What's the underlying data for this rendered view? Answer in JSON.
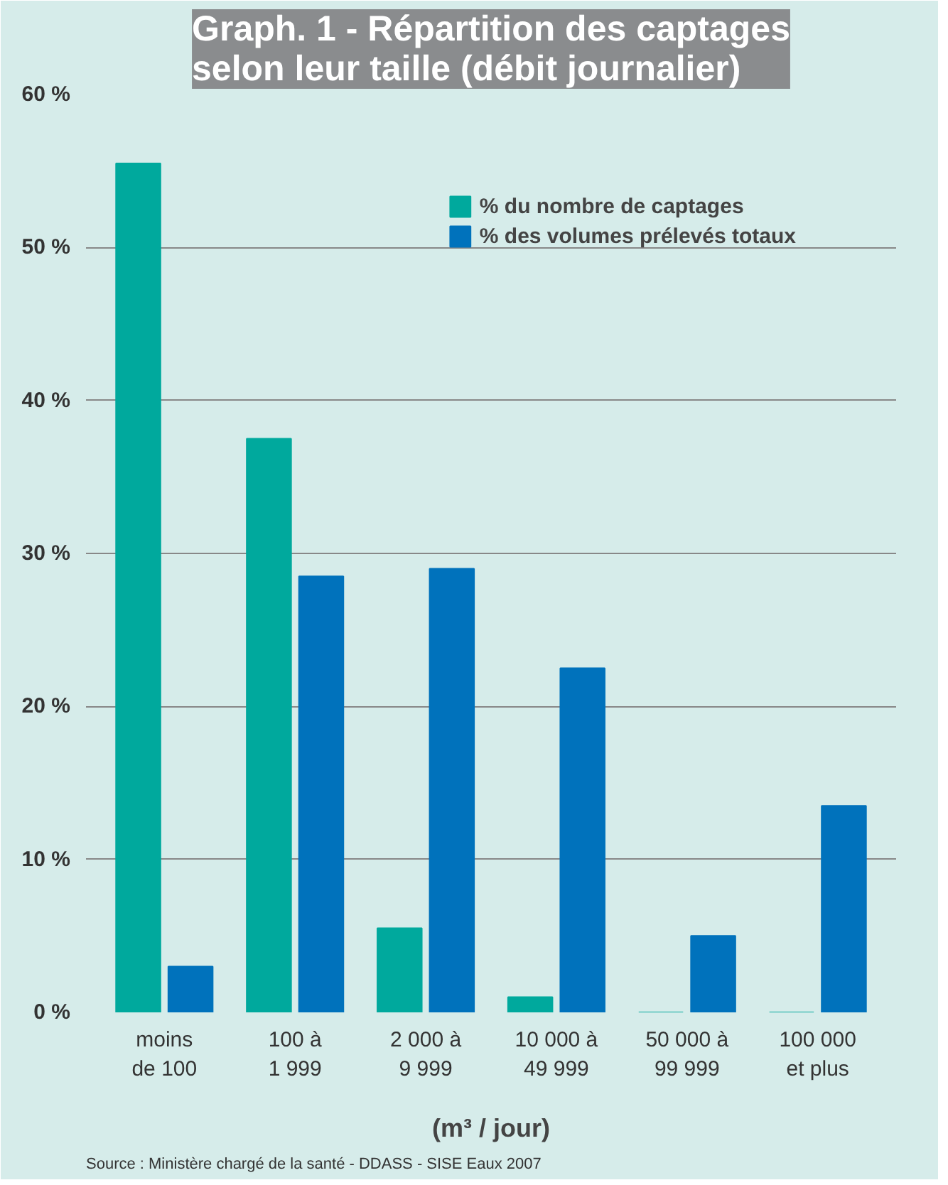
{
  "chart_data": {
    "type": "bar",
    "title": "Graph. 1 - Répartition des captages\nselon leur taille (débit journalier)",
    "categories": [
      "moins\nde 100",
      "100 à\n1 999",
      "2 000 à\n9 999",
      "10 000 à\n49 999",
      "50 000 à\n99 999",
      "100 000\net plus"
    ],
    "series": [
      {
        "name": "% du nombre de captages",
        "color": "#00a99d",
        "values": [
          55.5,
          37.5,
          5.5,
          1,
          0,
          0
        ]
      },
      {
        "name": "% des volumes prélevés totaux",
        "color": "#0072bc",
        "values": [
          3,
          28.5,
          29,
          22.5,
          5,
          13.5
        ]
      }
    ],
    "ylim": [
      0,
      60
    ],
    "yticks": [
      {
        "value": 0,
        "label": "0 %"
      },
      {
        "value": 10,
        "label": "10 %"
      },
      {
        "value": 20,
        "label": "20 %"
      },
      {
        "value": 30,
        "label": "30 %"
      },
      {
        "value": 40,
        "label": "40 %"
      },
      {
        "value": 50,
        "label": "50 %"
      },
      {
        "value": 60,
        "label": "60 %"
      }
    ],
    "xlabel": "(m³ / jour)",
    "grid": "y",
    "legend": "top right",
    "annotations": [
      "Source : Ministère chargé de la santé - DDASS - SISE Eaux 2007"
    ]
  }
}
